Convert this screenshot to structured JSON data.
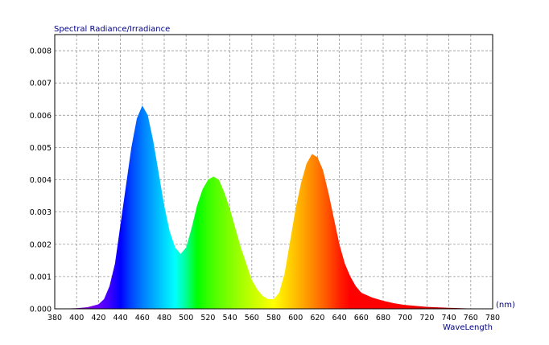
{
  "chart_data": {
    "type": "area",
    "title": "Spectral Radiance/Irradiance",
    "xlabel": "WaveLength",
    "xunit": "(nm)",
    "ylabel": "",
    "xlim": [
      380,
      780
    ],
    "ylim": [
      0,
      0.0085
    ],
    "grid": true,
    "fill": "wavelength-rainbow",
    "xticks": [
      "380",
      "400",
      "420",
      "440",
      "460",
      "480",
      "500",
      "520",
      "540",
      "560",
      "580",
      "600",
      "620",
      "640",
      "660",
      "680",
      "700",
      "720",
      "740",
      "760",
      "780"
    ],
    "yticks": [
      "0.000",
      "0.001",
      "0.002",
      "0.003",
      "0.004",
      "0.005",
      "0.006",
      "0.007",
      "0.008"
    ],
    "series": [
      {
        "x": [
          380,
          400,
          410,
          420,
          425,
          430,
          435,
          440,
          445,
          450,
          455,
          460,
          465,
          470,
          475,
          480,
          485,
          490,
          495,
          500,
          505,
          510,
          515,
          520,
          525,
          530,
          535,
          540,
          545,
          550,
          555,
          560,
          565,
          570,
          575,
          580,
          585,
          590,
          595,
          600,
          605,
          610,
          615,
          620,
          625,
          630,
          635,
          640,
          645,
          650,
          655,
          660,
          670,
          680,
          690,
          700,
          720,
          740,
          760,
          780
        ],
        "y": [
          0.0,
          2e-05,
          5e-05,
          0.00014,
          0.0003,
          0.0007,
          0.0014,
          0.0026,
          0.0038,
          0.005,
          0.0059,
          0.0063,
          0.006,
          0.0052,
          0.0042,
          0.0032,
          0.0024,
          0.0019,
          0.0017,
          0.0019,
          0.0025,
          0.0032,
          0.0037,
          0.004,
          0.0041,
          0.004,
          0.0036,
          0.0031,
          0.0025,
          0.0019,
          0.0014,
          0.0009,
          0.0006,
          0.0004,
          0.0003,
          0.0003,
          0.0005,
          0.0011,
          0.0021,
          0.0031,
          0.0039,
          0.0045,
          0.0048,
          0.0047,
          0.0043,
          0.0036,
          0.0028,
          0.002,
          0.0014,
          0.001,
          0.0007,
          0.0005,
          0.00035,
          0.00025,
          0.00017,
          0.00012,
          6e-05,
          3e-05,
          1e-05,
          0.0
        ]
      }
    ]
  }
}
